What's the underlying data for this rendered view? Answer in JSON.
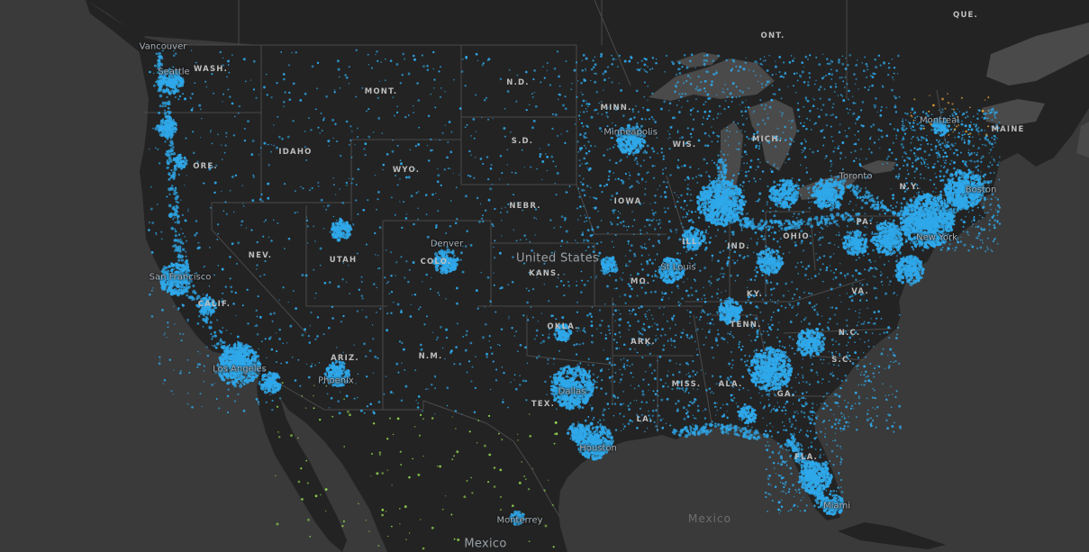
{
  "map": {
    "style": "dark",
    "colors": {
      "ocean": "#3a3a3a",
      "land": "#232323",
      "lakes": "#4a4a4a",
      "borders": "#4c4c4c",
      "data_primary": "#2fa8ea",
      "data_secondary_mexico": "#8fd14f",
      "data_secondary_canada": "#e0a23a"
    },
    "country_labels": {
      "us": "United States",
      "mexico": "Mexico",
      "gulf": "Mexico"
    },
    "state_labels": {
      "wash": "WASH.",
      "ore": "ORE.",
      "calif": "CALIF.",
      "idaho": "IDAHO",
      "nev": "NEV.",
      "mont": "MONT.",
      "wyo": "WYO.",
      "utah": "UTAH",
      "ariz": "ARIZ.",
      "colo": "COLO.",
      "nm": "N.M.",
      "nd": "N.D.",
      "sd": "S.D.",
      "nebr": "NEBR.",
      "kans": "KANS.",
      "okla": "OKLA.",
      "tex": "TEX.",
      "minn": "MINN.",
      "iowa": "IOWA",
      "mo": "MO.",
      "ark": "ARK.",
      "la": "LA.",
      "wis": "WIS.",
      "ill": "ILL.",
      "ind": "IND.",
      "mich": "MICH.",
      "ohio": "OHIO",
      "ky": "KY.",
      "tenn": "TENN.",
      "miss": "MISS.",
      "ala": "ALA.",
      "ga": "GA.",
      "fla": "FLA.",
      "sc": "S.C.",
      "nc": "N.C.",
      "va": "VA.",
      "pa": "PA.",
      "ny": "N.Y.",
      "maine": "MAINE",
      "ont": "ONT.",
      "que": "QUE."
    },
    "city_labels": {
      "vancouver": "Vancouver",
      "seattle": "Seattle",
      "sf": "San Francisco",
      "la": "Los Angeles",
      "phoenix": "Phoenix",
      "denver": "Denver",
      "minneapolis": "Minneapolis",
      "stlouis": "St Louis",
      "dallas": "Dallas",
      "houston": "Houston",
      "monterrey": "Monterrey",
      "miami": "Miami",
      "toronto": "Toronto",
      "montreal": "Montreal",
      "newyork": "New York",
      "boston": "Boston"
    }
  }
}
